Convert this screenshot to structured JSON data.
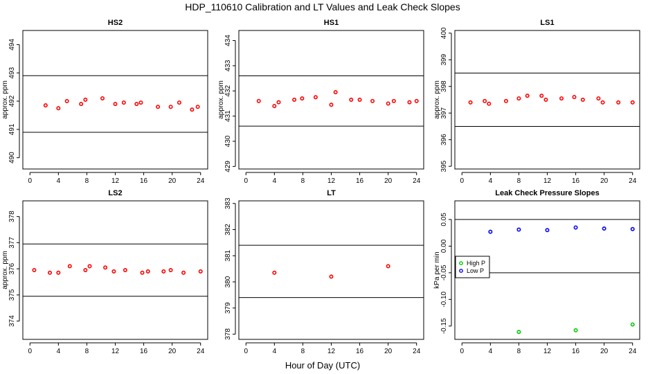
{
  "figure": {
    "title": "HDP_110610  Calibration and LT Values and Leak Check Slopes",
    "xlabel": "Hour of Day (UTC)"
  },
  "chart_data": [
    {
      "type": "scatter",
      "title": "HS2",
      "ylabel": "approx. ppm",
      "xlim": [
        -1,
        25
      ],
      "ylim": [
        489.6,
        494.5
      ],
      "xticks": [
        0,
        4,
        8,
        12,
        16,
        20,
        24
      ],
      "yticks": [
        490,
        491,
        492,
        493,
        494
      ],
      "hlines": [
        492.9,
        490.9
      ],
      "grid": false,
      "series": [
        {
          "color": "#ff0000",
          "x": [
            2.2,
            4.0,
            5.2,
            7.2,
            7.8,
            10.2,
            12.0,
            13.2,
            15.0,
            15.6,
            18.0,
            19.8,
            21.0,
            22.8,
            23.6
          ],
          "y": [
            491.85,
            491.75,
            492.0,
            491.9,
            492.05,
            492.1,
            491.9,
            491.95,
            491.9,
            491.95,
            491.8,
            491.8,
            491.95,
            491.7,
            491.8
          ]
        }
      ]
    },
    {
      "type": "scatter",
      "title": "HS1",
      "ylabel": "approx. ppm",
      "xlim": [
        -1,
        25
      ],
      "ylim": [
        428.9,
        434.4
      ],
      "xticks": [
        0,
        4,
        8,
        12,
        16,
        20,
        24
      ],
      "yticks": [
        429,
        430,
        431,
        432,
        433,
        434
      ],
      "hlines": [
        432.6,
        430.6
      ],
      "grid": false,
      "series": [
        {
          "color": "#ff0000",
          "x": [
            1.8,
            4.0,
            4.6,
            6.8,
            7.9,
            9.8,
            12.0,
            12.6,
            14.8,
            16.0,
            17.8,
            20.0,
            20.8,
            23.0,
            24.0
          ],
          "y": [
            431.6,
            431.4,
            431.55,
            431.65,
            431.7,
            431.75,
            431.45,
            431.95,
            431.65,
            431.65,
            431.6,
            431.5,
            431.6,
            431.55,
            431.6
          ]
        }
      ]
    },
    {
      "type": "scatter",
      "title": "LS1",
      "ylabel": "approx. ppm",
      "xlim": [
        -1,
        25
      ],
      "ylim": [
        394.9,
        400.1
      ],
      "xticks": [
        0,
        4,
        8,
        12,
        16,
        20,
        24
      ],
      "yticks": [
        395,
        396,
        397,
        398,
        399,
        400
      ],
      "hlines": [
        398.5,
        396.5
      ],
      "grid": false,
      "series": [
        {
          "color": "#ff0000",
          "x": [
            1.2,
            3.2,
            3.8,
            6.2,
            8.0,
            9.2,
            11.2,
            11.8,
            14.0,
            15.8,
            17.0,
            19.2,
            19.8,
            22.0,
            24.0
          ],
          "y": [
            397.4,
            397.45,
            397.35,
            397.45,
            397.55,
            397.65,
            397.65,
            397.5,
            397.55,
            397.6,
            397.5,
            397.55,
            397.4,
            397.4,
            397.4
          ]
        }
      ]
    },
    {
      "type": "scatter",
      "title": "LS2",
      "ylabel": "approx. ppm",
      "xlim": [
        -1,
        25
      ],
      "ylim": [
        373.3,
        378.6
      ],
      "xticks": [
        0,
        4,
        8,
        12,
        16,
        20,
        24
      ],
      "yticks": [
        374,
        375,
        376,
        377,
        378
      ],
      "hlines": [
        376.95,
        374.95
      ],
      "grid": false,
      "series": [
        {
          "color": "#ff0000",
          "x": [
            0.6,
            2.8,
            4.0,
            5.6,
            7.8,
            8.4,
            10.6,
            11.8,
            13.4,
            15.8,
            16.6,
            18.8,
            19.8,
            21.6,
            24.0
          ],
          "y": [
            375.95,
            375.85,
            375.85,
            376.1,
            375.95,
            376.1,
            376.05,
            375.9,
            375.95,
            375.85,
            375.9,
            375.9,
            375.95,
            375.85,
            375.9
          ]
        }
      ]
    },
    {
      "type": "scatter",
      "title": "LT",
      "ylabel": "",
      "xlim": [
        -1,
        25
      ],
      "ylim": [
        377.8,
        383.1
      ],
      "xticks": [
        0,
        4,
        8,
        12,
        16,
        20,
        24
      ],
      "yticks": [
        378,
        379,
        380,
        381,
        382,
        383
      ],
      "hlines": [
        381.4,
        379.4
      ],
      "grid": false,
      "series": [
        {
          "color": "#ff0000",
          "x": [
            4.0,
            12.0,
            20.0
          ],
          "y": [
            380.35,
            380.2,
            380.6
          ]
        }
      ]
    },
    {
      "type": "scatter",
      "title": "Leak Check Pressure Slopes",
      "ylabel": "kPa per min",
      "xlim": [
        -1,
        25
      ],
      "ylim": [
        -0.175,
        0.085
      ],
      "xticks": [
        0,
        4,
        8,
        12,
        16,
        20,
        24
      ],
      "yticks": [
        -0.15,
        -0.1,
        -0.05,
        0.0,
        0.05
      ],
      "ytick_labels": [
        "-0.15",
        "-0.10",
        "-0.05",
        "0.00",
        "0.05"
      ],
      "hlines": [
        0.05,
        -0.05
      ],
      "grid": false,
      "legend": "center-left",
      "series": [
        {
          "name": "High P",
          "color": "#00cc00",
          "x": [
            8.0,
            16.0,
            24.0
          ],
          "y": [
            -0.161,
            -0.158,
            -0.147
          ]
        },
        {
          "name": "Low P",
          "color": "#0000ff",
          "x": [
            4.0,
            8.0,
            12.0,
            16.0,
            20.0,
            24.0
          ],
          "y": [
            0.027,
            0.031,
            0.03,
            0.035,
            0.033,
            0.032
          ]
        }
      ]
    }
  ]
}
